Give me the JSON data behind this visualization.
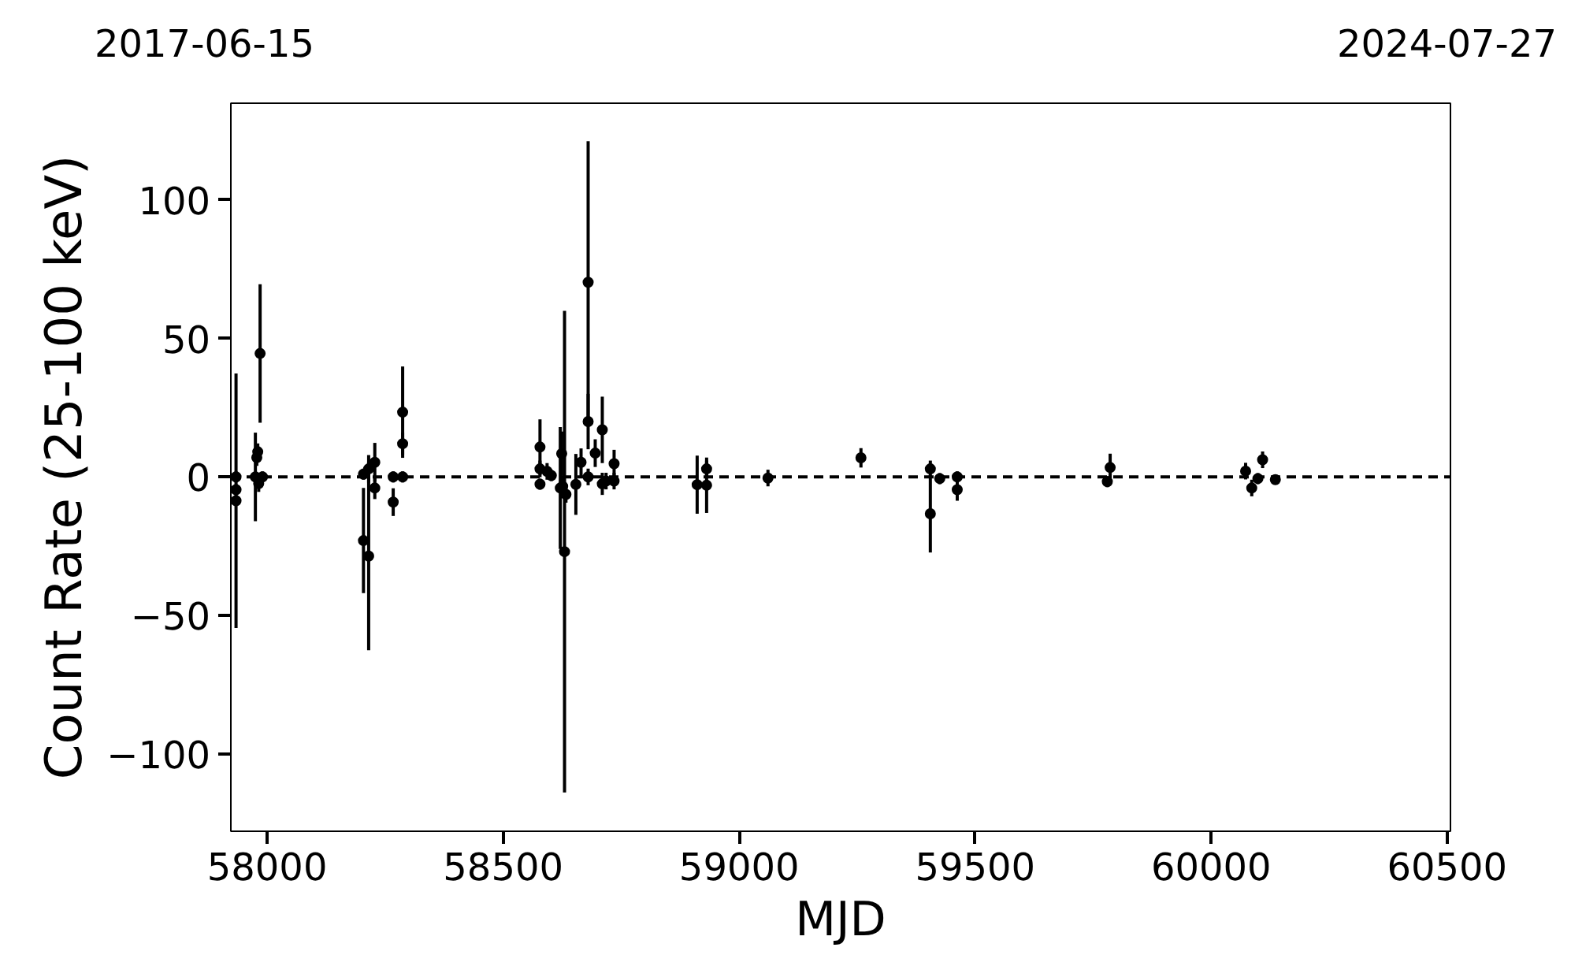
{
  "chart_data": {
    "type": "scatter",
    "xlabel": "MJD",
    "ylabel": "Count Rate (25-100 keV)",
    "annotations": [
      "2017-06-15",
      "2024-07-27"
    ],
    "xlim": [
      57923,
      60507
    ],
    "xticks": [
      58000,
      58500,
      59000,
      59500,
      60000,
      60500
    ],
    "ylim": [
      -128,
      135
    ],
    "yticks": [
      {
        "value": -100,
        "label": "−100"
      },
      {
        "value": -50,
        "label": "−50"
      },
      0,
      50,
      100
    ],
    "grid": false,
    "marker": "circle",
    "ref_lines": [
      {
        "axis": "y",
        "value": 0,
        "label": null,
        "color": "#000000",
        "line_style": "dashed"
      }
    ],
    "series": [
      {
        "color": "#000000",
        "x": [
          57934,
          57934,
          57934,
          57975,
          57980,
          57978,
          57982,
          57985,
          57990,
          58204,
          58204,
          58215,
          58215,
          58228,
          58228,
          58267,
          58267,
          58287,
          58287,
          58287,
          58578,
          58578,
          58578,
          58593,
          58602,
          58621,
          58624,
          58626,
          58630,
          58633,
          58654,
          58665,
          58680,
          58680,
          58680,
          58695,
          58710,
          58710,
          58718,
          58735,
          58735,
          58911,
          58931,
          58931,
          59061,
          59258,
          59405,
          59405,
          59425,
          59462,
          59462,
          59780,
          59786,
          60073,
          60086,
          60099,
          60109,
          60136
        ],
        "values": [
          0,
          -4.6,
          -8.6,
          0,
          9.1,
          7,
          -2.4,
          44.6,
          0,
          1,
          -23,
          -28.6,
          2.9,
          5.3,
          -4,
          0,
          -9.1,
          23.4,
          12,
          0,
          10.8,
          2.9,
          -2.6,
          2,
          0.5,
          -4,
          8.4,
          -3.4,
          -27,
          -6.3,
          -2.7,
          5.3,
          70.3,
          20,
          0,
          8.6,
          17,
          -2.5,
          -1.5,
          4.8,
          -1.5,
          -2.8,
          2.9,
          -3,
          -0.4,
          6.9,
          2.9,
          -13.3,
          -0.6,
          0,
          -4.6,
          -1.7,
          3.4,
          2.1,
          -4,
          -0.6,
          6.2,
          -1
        ],
        "errors": [
          2,
          2,
          46,
          16,
          3,
          3,
          3,
          25,
          2,
          2,
          19,
          34,
          5,
          7,
          4,
          2,
          5,
          16.5,
          4,
          2,
          10,
          3,
          2,
          3,
          2,
          22,
          8,
          3,
          87,
          3,
          11,
          5,
          51,
          10,
          3,
          5,
          12,
          4,
          3,
          5,
          3,
          10.5,
          3,
          10,
          3,
          3.5,
          3,
          14,
          2,
          2,
          4,
          2,
          5,
          3,
          3,
          2,
          3,
          1
        ]
      }
    ]
  }
}
